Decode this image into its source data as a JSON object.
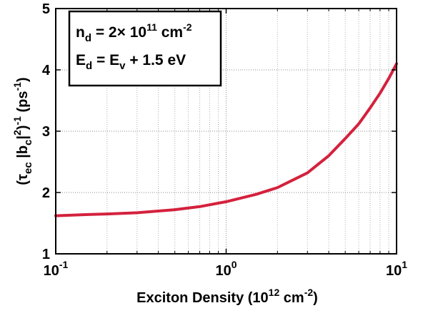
{
  "chart_data": {
    "type": "line",
    "xscale": "log",
    "xlim": [
      0.1,
      10
    ],
    "ylim": [
      1,
      5
    ],
    "grid": true,
    "line_color": "#d4213d",
    "series": [
      {
        "x": [
          0.1,
          0.15,
          0.2,
          0.3,
          0.5,
          0.7,
          1,
          1.5,
          2,
          3,
          4,
          5,
          6,
          7,
          8,
          9,
          10
        ],
        "y": [
          1.62,
          1.64,
          1.65,
          1.67,
          1.72,
          1.77,
          1.85,
          1.97,
          2.08,
          2.32,
          2.6,
          2.88,
          3.12,
          3.38,
          3.62,
          3.86,
          4.1
        ]
      }
    ],
    "xticks": [
      {
        "base": "10",
        "exp": "-1"
      },
      {
        "base": "10",
        "exp": "0"
      },
      {
        "base": "10",
        "exp": "1"
      }
    ],
    "yticks": [
      "1",
      "2",
      "3",
      "4",
      "5"
    ],
    "xlabel": {
      "main": "Exciton Density (10",
      "exp1": "12",
      "mid": " cm",
      "exp2": "-2",
      "end": ")"
    },
    "ylabel": {
      "open": "(τ",
      "sub1": "ec",
      "mid1": " |b",
      "sub2": "c",
      "mid2": "|",
      "sup1": "2",
      "mid3": ")",
      "sup2": "-1",
      "end": " (ps",
      "sup3": "-1",
      "close": ")"
    },
    "legend": {
      "line1": {
        "n": "n",
        "nsub": "d",
        "eq": " = 2× 10",
        "exp": "11",
        "unit": " cm",
        "unitexp": "-2"
      },
      "line2": {
        "e": "E",
        "esub": "d",
        "eq": " = E",
        "vsub": "v",
        "rest": " + 1.5 eV"
      }
    }
  }
}
